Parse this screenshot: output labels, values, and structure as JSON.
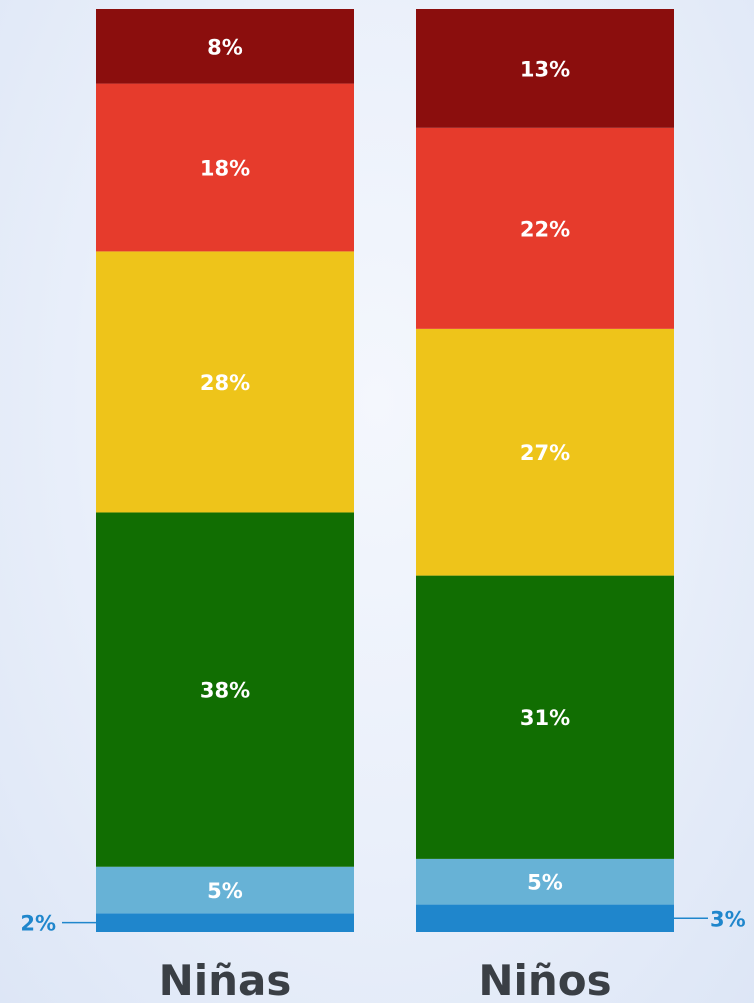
{
  "chart_data": {
    "type": "bar",
    "stacked": true,
    "orientation": "vertical",
    "categories": [
      "Niñas",
      "Niños"
    ],
    "series": [
      {
        "color": "#1f86cc",
        "values": [
          2,
          3
        ],
        "labels": [
          "2%",
          "3%"
        ]
      },
      {
        "color": "#67b2d6",
        "values": [
          5,
          5
        ],
        "labels": [
          "5%",
          "5%"
        ]
      },
      {
        "color": "#116e02",
        "values": [
          38,
          31
        ],
        "labels": [
          "38%",
          "31%"
        ]
      },
      {
        "color": "#eec41a",
        "values": [
          28,
          27
        ],
        "labels": [
          "28%",
          "27%"
        ]
      },
      {
        "color": "#e63b2c",
        "values": [
          18,
          22
        ],
        "labels": [
          "18%",
          "22%"
        ]
      },
      {
        "color": "#8b0e0d",
        "values": [
          8,
          13
        ],
        "labels": [
          "8%",
          "13%"
        ]
      }
    ],
    "outside_label_color": "#1f86cc",
    "legend": "none",
    "grid": false
  }
}
